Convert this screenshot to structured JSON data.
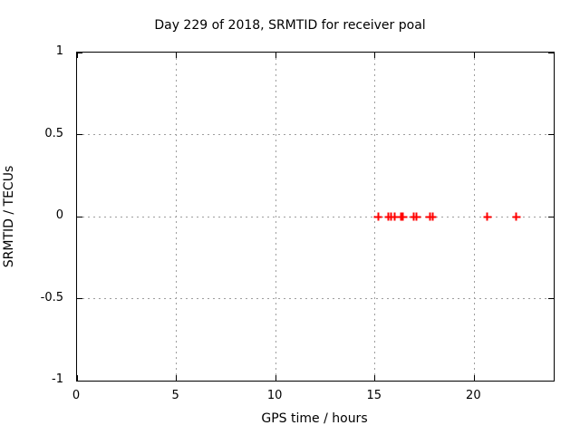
{
  "chart_data": {
    "type": "scatter",
    "title": "Day 229 of 2018, SRMTID for receiver poal",
    "xlabel": "GPS time / hours",
    "ylabel": "SRMTID / TECUs",
    "xlim": [
      0,
      24
    ],
    "ylim": [
      -1,
      1
    ],
    "xticks": [
      0,
      5,
      10,
      15,
      20
    ],
    "xtick_labels": [
      "0",
      "5",
      "10",
      "15",
      "20"
    ],
    "yticks": [
      1,
      0.5,
      0,
      -0.5,
      -1
    ],
    "ytick_labels": [
      "1",
      "0.5",
      "0",
      "-0.5",
      "-1"
    ],
    "grid": true,
    "legend_position": "none",
    "marker_style": "plus",
    "series": [
      {
        "name": "SRMTID",
        "x": [
          15.16,
          15.68,
          15.81,
          16.0,
          16.32,
          16.41,
          16.97,
          17.11,
          17.76,
          17.9,
          20.65,
          22.12
        ],
        "y": [
          0,
          0,
          0,
          0,
          0,
          0,
          0,
          0,
          0,
          0,
          0,
          0
        ]
      }
    ],
    "colors": {
      "marker": "#ff0000",
      "grid": "#9e9e9e",
      "border": "#000000",
      "background": "#ffffff",
      "text": "#000000"
    }
  }
}
